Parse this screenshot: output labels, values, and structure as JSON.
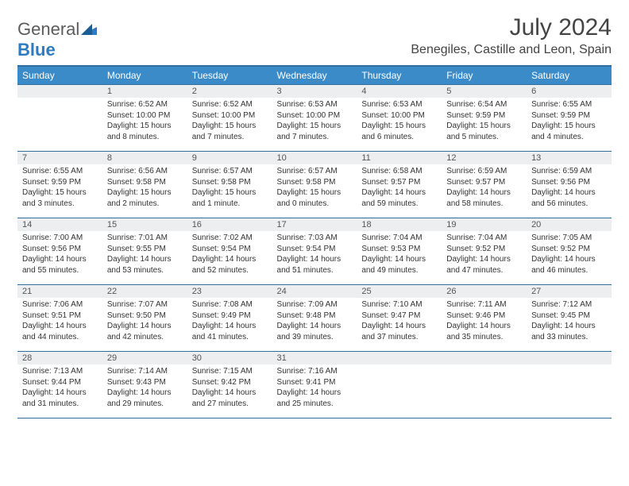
{
  "brand": {
    "part1": "General",
    "part2": "Blue"
  },
  "title": "July 2024",
  "location": "Benegiles, Castille and Leon, Spain",
  "colors": {
    "header_bg": "#3b8bc9",
    "header_border": "#2f6fa0",
    "daynum_bg": "#eceeef",
    "text": "#333333",
    "brand_gray": "#5c5c5c",
    "brand_blue": "#2f7bbf"
  },
  "days_of_week": [
    "Sunday",
    "Monday",
    "Tuesday",
    "Wednesday",
    "Thursday",
    "Friday",
    "Saturday"
  ],
  "weeks": [
    [
      null,
      {
        "n": "1",
        "sr": "Sunrise: 6:52 AM",
        "ss": "Sunset: 10:00 PM",
        "dl1": "Daylight: 15 hours",
        "dl2": "and 8 minutes."
      },
      {
        "n": "2",
        "sr": "Sunrise: 6:52 AM",
        "ss": "Sunset: 10:00 PM",
        "dl1": "Daylight: 15 hours",
        "dl2": "and 7 minutes."
      },
      {
        "n": "3",
        "sr": "Sunrise: 6:53 AM",
        "ss": "Sunset: 10:00 PM",
        "dl1": "Daylight: 15 hours",
        "dl2": "and 7 minutes."
      },
      {
        "n": "4",
        "sr": "Sunrise: 6:53 AM",
        "ss": "Sunset: 10:00 PM",
        "dl1": "Daylight: 15 hours",
        "dl2": "and 6 minutes."
      },
      {
        "n": "5",
        "sr": "Sunrise: 6:54 AM",
        "ss": "Sunset: 9:59 PM",
        "dl1": "Daylight: 15 hours",
        "dl2": "and 5 minutes."
      },
      {
        "n": "6",
        "sr": "Sunrise: 6:55 AM",
        "ss": "Sunset: 9:59 PM",
        "dl1": "Daylight: 15 hours",
        "dl2": "and 4 minutes."
      }
    ],
    [
      {
        "n": "7",
        "sr": "Sunrise: 6:55 AM",
        "ss": "Sunset: 9:59 PM",
        "dl1": "Daylight: 15 hours",
        "dl2": "and 3 minutes."
      },
      {
        "n": "8",
        "sr": "Sunrise: 6:56 AM",
        "ss": "Sunset: 9:58 PM",
        "dl1": "Daylight: 15 hours",
        "dl2": "and 2 minutes."
      },
      {
        "n": "9",
        "sr": "Sunrise: 6:57 AM",
        "ss": "Sunset: 9:58 PM",
        "dl1": "Daylight: 15 hours",
        "dl2": "and 1 minute."
      },
      {
        "n": "10",
        "sr": "Sunrise: 6:57 AM",
        "ss": "Sunset: 9:58 PM",
        "dl1": "Daylight: 15 hours",
        "dl2": "and 0 minutes."
      },
      {
        "n": "11",
        "sr": "Sunrise: 6:58 AM",
        "ss": "Sunset: 9:57 PM",
        "dl1": "Daylight: 14 hours",
        "dl2": "and 59 minutes."
      },
      {
        "n": "12",
        "sr": "Sunrise: 6:59 AM",
        "ss": "Sunset: 9:57 PM",
        "dl1": "Daylight: 14 hours",
        "dl2": "and 58 minutes."
      },
      {
        "n": "13",
        "sr": "Sunrise: 6:59 AM",
        "ss": "Sunset: 9:56 PM",
        "dl1": "Daylight: 14 hours",
        "dl2": "and 56 minutes."
      }
    ],
    [
      {
        "n": "14",
        "sr": "Sunrise: 7:00 AM",
        "ss": "Sunset: 9:56 PM",
        "dl1": "Daylight: 14 hours",
        "dl2": "and 55 minutes."
      },
      {
        "n": "15",
        "sr": "Sunrise: 7:01 AM",
        "ss": "Sunset: 9:55 PM",
        "dl1": "Daylight: 14 hours",
        "dl2": "and 53 minutes."
      },
      {
        "n": "16",
        "sr": "Sunrise: 7:02 AM",
        "ss": "Sunset: 9:54 PM",
        "dl1": "Daylight: 14 hours",
        "dl2": "and 52 minutes."
      },
      {
        "n": "17",
        "sr": "Sunrise: 7:03 AM",
        "ss": "Sunset: 9:54 PM",
        "dl1": "Daylight: 14 hours",
        "dl2": "and 51 minutes."
      },
      {
        "n": "18",
        "sr": "Sunrise: 7:04 AM",
        "ss": "Sunset: 9:53 PM",
        "dl1": "Daylight: 14 hours",
        "dl2": "and 49 minutes."
      },
      {
        "n": "19",
        "sr": "Sunrise: 7:04 AM",
        "ss": "Sunset: 9:52 PM",
        "dl1": "Daylight: 14 hours",
        "dl2": "and 47 minutes."
      },
      {
        "n": "20",
        "sr": "Sunrise: 7:05 AM",
        "ss": "Sunset: 9:52 PM",
        "dl1": "Daylight: 14 hours",
        "dl2": "and 46 minutes."
      }
    ],
    [
      {
        "n": "21",
        "sr": "Sunrise: 7:06 AM",
        "ss": "Sunset: 9:51 PM",
        "dl1": "Daylight: 14 hours",
        "dl2": "and 44 minutes."
      },
      {
        "n": "22",
        "sr": "Sunrise: 7:07 AM",
        "ss": "Sunset: 9:50 PM",
        "dl1": "Daylight: 14 hours",
        "dl2": "and 42 minutes."
      },
      {
        "n": "23",
        "sr": "Sunrise: 7:08 AM",
        "ss": "Sunset: 9:49 PM",
        "dl1": "Daylight: 14 hours",
        "dl2": "and 41 minutes."
      },
      {
        "n": "24",
        "sr": "Sunrise: 7:09 AM",
        "ss": "Sunset: 9:48 PM",
        "dl1": "Daylight: 14 hours",
        "dl2": "and 39 minutes."
      },
      {
        "n": "25",
        "sr": "Sunrise: 7:10 AM",
        "ss": "Sunset: 9:47 PM",
        "dl1": "Daylight: 14 hours",
        "dl2": "and 37 minutes."
      },
      {
        "n": "26",
        "sr": "Sunrise: 7:11 AM",
        "ss": "Sunset: 9:46 PM",
        "dl1": "Daylight: 14 hours",
        "dl2": "and 35 minutes."
      },
      {
        "n": "27",
        "sr": "Sunrise: 7:12 AM",
        "ss": "Sunset: 9:45 PM",
        "dl1": "Daylight: 14 hours",
        "dl2": "and 33 minutes."
      }
    ],
    [
      {
        "n": "28",
        "sr": "Sunrise: 7:13 AM",
        "ss": "Sunset: 9:44 PM",
        "dl1": "Daylight: 14 hours",
        "dl2": "and 31 minutes."
      },
      {
        "n": "29",
        "sr": "Sunrise: 7:14 AM",
        "ss": "Sunset: 9:43 PM",
        "dl1": "Daylight: 14 hours",
        "dl2": "and 29 minutes."
      },
      {
        "n": "30",
        "sr": "Sunrise: 7:15 AM",
        "ss": "Sunset: 9:42 PM",
        "dl1": "Daylight: 14 hours",
        "dl2": "and 27 minutes."
      },
      {
        "n": "31",
        "sr": "Sunrise: 7:16 AM",
        "ss": "Sunset: 9:41 PM",
        "dl1": "Daylight: 14 hours",
        "dl2": "and 25 minutes."
      },
      null,
      null,
      null
    ]
  ]
}
